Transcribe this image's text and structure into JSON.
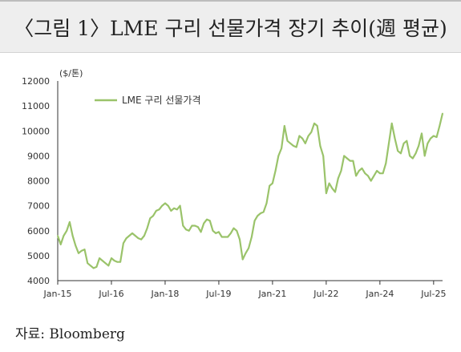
{
  "title": "〈그림 1〉LME 구리 선물가격 장기 추이(週 평균)",
  "source": "자료: Bloomberg",
  "chart_data": {
    "type": "line",
    "ylabel": "($/톤)",
    "ylim": [
      4000,
      12000
    ],
    "yticks": [
      "4000",
      "5000",
      "6000",
      "7000",
      "8000",
      "9000",
      "10000",
      "11000",
      "12000"
    ],
    "xlim": [
      "2015-01",
      "2025-10"
    ],
    "xticks": [
      {
        "label": "Jan-15",
        "date": "2015-01"
      },
      {
        "label": "Jul-16",
        "date": "2016-07"
      },
      {
        "label": "Jan-18",
        "date": "2018-01"
      },
      {
        "label": "Jul-19",
        "date": "2019-07"
      },
      {
        "label": "Jan-21",
        "date": "2021-01"
      },
      {
        "label": "Jul-22",
        "date": "2022-07"
      },
      {
        "label": "Jan-24",
        "date": "2024-01"
      },
      {
        "label": "Jul-25",
        "date": "2025-07"
      }
    ],
    "legend": {
      "position": "top-left"
    },
    "colors": {
      "series": "#9ac36a",
      "axis": "#333333",
      "text": "#333333"
    },
    "series": [
      {
        "name": "LME 구리 선물가격",
        "points": [
          [
            "2015-01",
            5800
          ],
          [
            "2015-02",
            5450
          ],
          [
            "2015-03",
            5800
          ],
          [
            "2015-04",
            6000
          ],
          [
            "2015-05",
            6350
          ],
          [
            "2015-06",
            5800
          ],
          [
            "2015-07",
            5400
          ],
          [
            "2015-08",
            5100
          ],
          [
            "2015-09",
            5200
          ],
          [
            "2015-10",
            5250
          ],
          [
            "2015-11",
            4700
          ],
          [
            "2015-12",
            4600
          ],
          [
            "2016-01",
            4500
          ],
          [
            "2016-02",
            4550
          ],
          [
            "2016-03",
            4900
          ],
          [
            "2016-04",
            4800
          ],
          [
            "2016-05",
            4700
          ],
          [
            "2016-06",
            4600
          ],
          [
            "2016-07",
            4900
          ],
          [
            "2016-08",
            4800
          ],
          [
            "2016-09",
            4750
          ],
          [
            "2016-10",
            4750
          ],
          [
            "2016-11",
            5500
          ],
          [
            "2016-12",
            5700
          ],
          [
            "2017-01",
            5800
          ],
          [
            "2017-02",
            5900
          ],
          [
            "2017-03",
            5800
          ],
          [
            "2017-04",
            5700
          ],
          [
            "2017-05",
            5650
          ],
          [
            "2017-06",
            5800
          ],
          [
            "2017-07",
            6100
          ],
          [
            "2017-08",
            6500
          ],
          [
            "2017-09",
            6600
          ],
          [
            "2017-10",
            6800
          ],
          [
            "2017-11",
            6850
          ],
          [
            "2017-12",
            7000
          ],
          [
            "2018-01",
            7100
          ],
          [
            "2018-02",
            7000
          ],
          [
            "2018-03",
            6800
          ],
          [
            "2018-04",
            6900
          ],
          [
            "2018-05",
            6850
          ],
          [
            "2018-06",
            7000
          ],
          [
            "2018-07",
            6200
          ],
          [
            "2018-08",
            6050
          ],
          [
            "2018-09",
            6000
          ],
          [
            "2018-10",
            6200
          ],
          [
            "2018-11",
            6200
          ],
          [
            "2018-12",
            6150
          ],
          [
            "2019-01",
            5950
          ],
          [
            "2019-02",
            6300
          ],
          [
            "2019-03",
            6450
          ],
          [
            "2019-04",
            6400
          ],
          [
            "2019-05",
            6000
          ],
          [
            "2019-06",
            5900
          ],
          [
            "2019-07",
            5950
          ],
          [
            "2019-08",
            5750
          ],
          [
            "2019-09",
            5750
          ],
          [
            "2019-10",
            5750
          ],
          [
            "2019-11",
            5900
          ],
          [
            "2019-12",
            6100
          ],
          [
            "2020-01",
            6000
          ],
          [
            "2020-02",
            5650
          ],
          [
            "2020-03",
            4850
          ],
          [
            "2020-04",
            5100
          ],
          [
            "2020-05",
            5300
          ],
          [
            "2020-06",
            5750
          ],
          [
            "2020-07",
            6400
          ],
          [
            "2020-08",
            6600
          ],
          [
            "2020-09",
            6700
          ],
          [
            "2020-10",
            6750
          ],
          [
            "2020-11",
            7100
          ],
          [
            "2020-12",
            7800
          ],
          [
            "2021-01",
            7900
          ],
          [
            "2021-02",
            8400
          ],
          [
            "2021-03",
            9000
          ],
          [
            "2021-04",
            9300
          ],
          [
            "2021-05",
            10200
          ],
          [
            "2021-06",
            9600
          ],
          [
            "2021-07",
            9500
          ],
          [
            "2021-08",
            9400
          ],
          [
            "2021-09",
            9350
          ],
          [
            "2021-10",
            9800
          ],
          [
            "2021-11",
            9700
          ],
          [
            "2021-12",
            9500
          ],
          [
            "2022-01",
            9800
          ],
          [
            "2022-02",
            9950
          ],
          [
            "2022-03",
            10300
          ],
          [
            "2022-04",
            10200
          ],
          [
            "2022-05",
            9400
          ],
          [
            "2022-06",
            9000
          ],
          [
            "2022-07",
            7500
          ],
          [
            "2022-08",
            7900
          ],
          [
            "2022-09",
            7700
          ],
          [
            "2022-10",
            7550
          ],
          [
            "2022-11",
            8100
          ],
          [
            "2022-12",
            8400
          ],
          [
            "2023-01",
            9000
          ],
          [
            "2023-02",
            8900
          ],
          [
            "2023-03",
            8800
          ],
          [
            "2023-04",
            8800
          ],
          [
            "2023-05",
            8200
          ],
          [
            "2023-06",
            8400
          ],
          [
            "2023-07",
            8500
          ],
          [
            "2023-08",
            8300
          ],
          [
            "2023-09",
            8200
          ],
          [
            "2023-10",
            8000
          ],
          [
            "2023-11",
            8200
          ],
          [
            "2023-12",
            8400
          ],
          [
            "2024-01",
            8300
          ],
          [
            "2024-02",
            8300
          ],
          [
            "2024-03",
            8700
          ],
          [
            "2024-04",
            9500
          ],
          [
            "2024-05",
            10300
          ],
          [
            "2024-06",
            9700
          ],
          [
            "2024-07",
            9200
          ],
          [
            "2024-08",
            9100
          ],
          [
            "2024-09",
            9500
          ],
          [
            "2024-10",
            9600
          ],
          [
            "2024-11",
            9000
          ],
          [
            "2024-12",
            8900
          ],
          [
            "2025-01",
            9100
          ],
          [
            "2025-02",
            9400
          ],
          [
            "2025-03",
            9900
          ],
          [
            "2025-04",
            9000
          ],
          [
            "2025-05",
            9500
          ],
          [
            "2025-06",
            9700
          ],
          [
            "2025-07",
            9800
          ],
          [
            "2025-08",
            9750
          ],
          [
            "2025-09",
            10200
          ],
          [
            "2025-10",
            10700
          ]
        ]
      }
    ]
  }
}
